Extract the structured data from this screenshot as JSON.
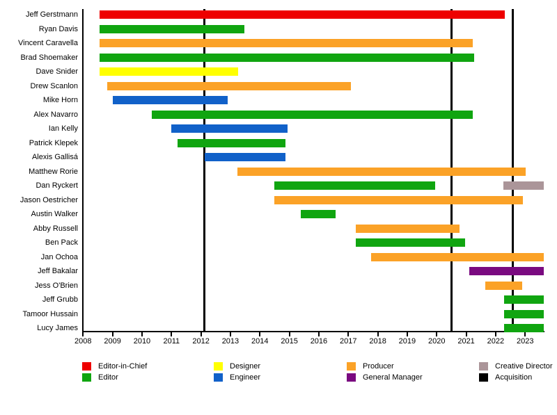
{
  "chart_data": {
    "type": "gantt",
    "description": "Staff tenure timeline with role-colored horizontal bars and vertical acquisition marker lines",
    "x_axis": {
      "tick_years": [
        2008,
        2009,
        2010,
        2011,
        2012,
        2013,
        2014,
        2015,
        2016,
        2017,
        2018,
        2019,
        2020,
        2021,
        2022,
        2023
      ],
      "domain": [
        2008,
        2023.65
      ],
      "grid": false
    },
    "legend": [
      {
        "label": "Editor-in-Chief",
        "color": "#ee0000"
      },
      {
        "label": "Editor",
        "color": "#10a510"
      },
      {
        "label": "Designer",
        "color": "#ffff00"
      },
      {
        "label": "Engineer",
        "color": "#1161c9"
      },
      {
        "label": "Producer",
        "color": "#fba227"
      },
      {
        "label": "General Manager",
        "color": "#7a0a80"
      },
      {
        "label": "Creative Director",
        "color": "#ab9599"
      },
      {
        "label": "Acquisition",
        "color": "#000000"
      }
    ],
    "rows": [
      {
        "name": "Jeff Gerstmann",
        "bars": [
          {
            "role": "Editor-in-Chief",
            "start": 2008.56,
            "end": 2022.3
          }
        ]
      },
      {
        "name": "Ryan Davis",
        "bars": [
          {
            "role": "Editor",
            "start": 2008.56,
            "end": 2013.47
          }
        ]
      },
      {
        "name": "Vincent Caravella",
        "bars": [
          {
            "role": "Producer",
            "start": 2008.56,
            "end": 2021.22
          }
        ]
      },
      {
        "name": "Brad Shoemaker",
        "bars": [
          {
            "role": "Editor",
            "start": 2008.56,
            "end": 2021.27
          }
        ]
      },
      {
        "name": "Dave Snider",
        "bars": [
          {
            "role": "Designer",
            "start": 2008.56,
            "end": 2013.25
          }
        ]
      },
      {
        "name": "Drew Scanlon",
        "bars": [
          {
            "role": "Producer",
            "start": 2008.82,
            "end": 2017.09
          }
        ]
      },
      {
        "name": "Mike Horn",
        "bars": [
          {
            "role": "Engineer",
            "start": 2009.0,
            "end": 2012.91
          }
        ]
      },
      {
        "name": "Alex Navarro",
        "bars": [
          {
            "role": "Editor",
            "start": 2010.32,
            "end": 2021.22
          }
        ]
      },
      {
        "name": "Ian Kelly",
        "bars": [
          {
            "role": "Engineer",
            "start": 2011.0,
            "end": 2014.95
          }
        ]
      },
      {
        "name": "Patrick Klepek",
        "bars": [
          {
            "role": "Editor",
            "start": 2011.21,
            "end": 2014.87
          }
        ]
      },
      {
        "name": "Alexis Gallisá",
        "bars": [
          {
            "role": "Engineer",
            "start": 2012.13,
            "end": 2014.87
          }
        ]
      },
      {
        "name": "Matthew Rorie",
        "bars": [
          {
            "role": "Producer",
            "start": 2013.24,
            "end": 2023.02
          }
        ]
      },
      {
        "name": "Dan Ryckert",
        "bars": [
          {
            "role": "Editor",
            "start": 2014.49,
            "end": 2019.95
          },
          {
            "role": "Creative Director",
            "start": 2022.26,
            "end": 2023.63
          }
        ]
      },
      {
        "name": "Jason Oestricher",
        "bars": [
          {
            "role": "Producer",
            "start": 2014.49,
            "end": 2022.93
          }
        ]
      },
      {
        "name": "Austin Walker",
        "bars": [
          {
            "role": "Editor",
            "start": 2015.39,
            "end": 2016.56
          }
        ]
      },
      {
        "name": "Abby Russell",
        "bars": [
          {
            "role": "Producer",
            "start": 2017.25,
            "end": 2020.78
          }
        ]
      },
      {
        "name": "Ben Pack",
        "bars": [
          {
            "role": "Editor",
            "start": 2017.25,
            "end": 2020.97
          }
        ]
      },
      {
        "name": "Jan Ochoa",
        "bars": [
          {
            "role": "Producer",
            "start": 2017.77,
            "end": 2023.63
          }
        ]
      },
      {
        "name": "Jeff Bakalar",
        "bars": [
          {
            "role": "General Manager",
            "start": 2021.1,
            "end": 2023.63
          }
        ]
      },
      {
        "name": "Jess O'Brien",
        "bars": [
          {
            "role": "Producer",
            "start": 2021.64,
            "end": 2022.9
          }
        ]
      },
      {
        "name": "Jeff Grubb",
        "bars": [
          {
            "role": "Editor",
            "start": 2022.29,
            "end": 2023.63
          }
        ]
      },
      {
        "name": "Tamoor Hussain",
        "bars": [
          {
            "role": "Editor",
            "start": 2022.29,
            "end": 2023.63
          }
        ]
      },
      {
        "name": "Lucy James",
        "bars": [
          {
            "role": "Editor",
            "start": 2022.29,
            "end": 2023.63
          }
        ]
      }
    ],
    "acquisitions": [
      {
        "year": 2012.11
      },
      {
        "year": 2020.51
      },
      {
        "year": 2022.57
      }
    ]
  }
}
